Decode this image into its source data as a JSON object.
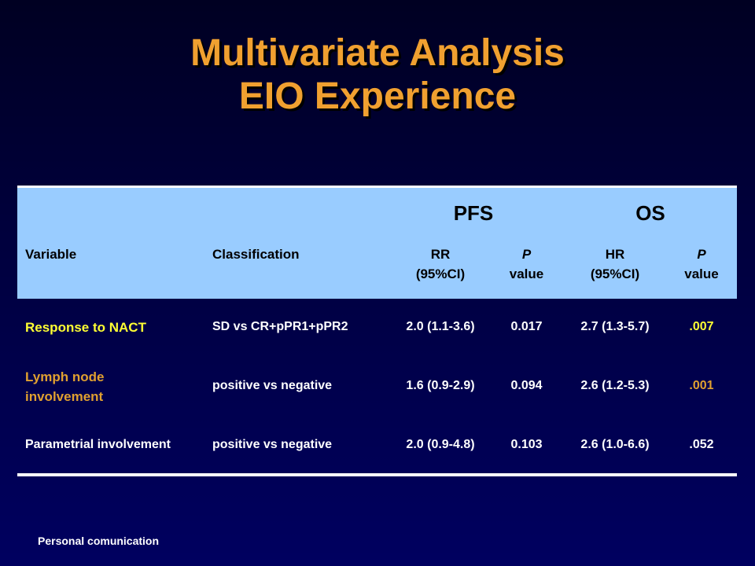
{
  "title": {
    "line1": "Multivariate Analysis",
    "line2": "EIO Experience"
  },
  "table": {
    "groups": {
      "pfs": "PFS",
      "os": "OS"
    },
    "headers": {
      "variable": "Variable",
      "classification": "Classification",
      "rr_line1": "RR",
      "rr_line2": "(95%CI)",
      "p1_line1": "P",
      "p1_line2": "value",
      "hr_line1": "HR",
      "hr_line2": "(95%CI)",
      "p2_line1": "P",
      "p2_line2": "value"
    },
    "rows": [
      {
        "variable": "Response to NACT",
        "classification": "SD vs CR+pPR1+pPR2",
        "rr": "2.0 (1.1-3.6)",
        "p1": "0.017",
        "hr": "2.7 (1.3-5.7)",
        "p2": ".007"
      },
      {
        "variable_line1": "Lymph node",
        "variable_line2": "involvement",
        "classification": "positive vs negative",
        "rr": "1.6 (0.9-2.9)",
        "p1": "0.094",
        "hr": "2.6 (1.2-5.3)",
        "p2": ".001"
      },
      {
        "variable": "Parametrial involvement",
        "classification": "positive vs negative",
        "rr": "2.0 (0.9-4.8)",
        "p1": "0.103",
        "hr": "2.6 (1.0-6.6)",
        "p2": ".052"
      }
    ]
  },
  "footnote": "Personal comunication",
  "colors": {
    "title": "#f0a030",
    "header_bg": "#99ccff",
    "highlight_yellow": "#ffff33",
    "highlight_orange": "#e0a030"
  }
}
